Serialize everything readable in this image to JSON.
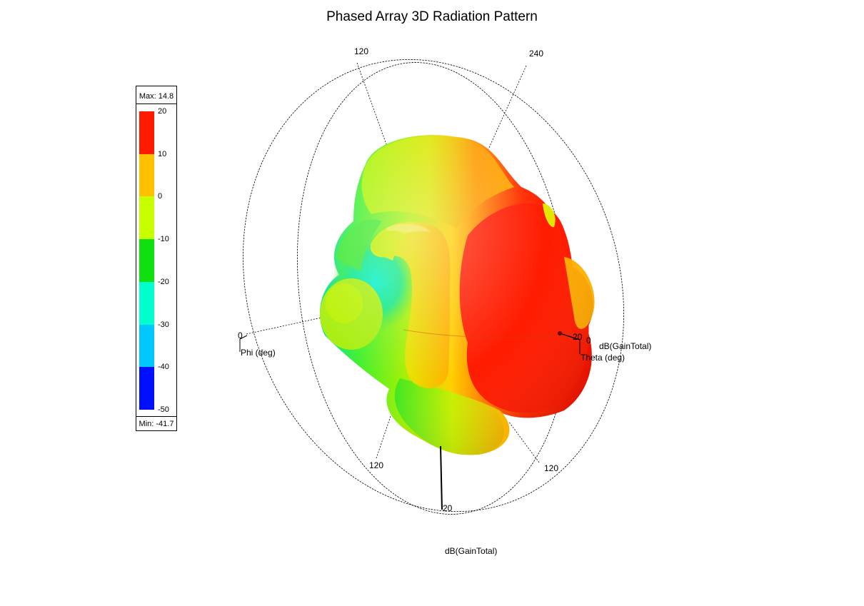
{
  "title": "Phased Array 3D Radiation Pattern",
  "legend": {
    "max_label": "Max: 14.8",
    "min_label": "Min: -41.7",
    "ticks": [
      "20",
      "10",
      "0",
      "-10",
      "-20",
      "-30",
      "-40",
      "-50"
    ],
    "colors": [
      "#ff1a00",
      "#ffc000",
      "#c8ff00",
      "#10e010",
      "#00ffcc",
      "#00c8ff",
      "#0010ff"
    ]
  },
  "axes": {
    "phi_title": "Phi (deg)",
    "theta_title": "Theta (deg)",
    "gain_title": "dB(GainTotal)",
    "gain_title_bottom": "dB(GainTotal)",
    "phi_0": "0",
    "theta_0": "0",
    "label_120_top": "120",
    "label_240_top": "240",
    "label_120_bl": "120",
    "label_120_br": "120",
    "label_20_right": "20",
    "label_20_bottom": "20"
  },
  "chart_data": {
    "type": "3d-radiation-pattern",
    "title": "Phased Array 3D Radiation Pattern",
    "quantity": "dB(GainTotal)",
    "max": 14.8,
    "min": -41.7,
    "colorbar_ticks": [
      20,
      10,
      0,
      -10,
      -20,
      -30,
      -40,
      -50
    ],
    "axes": [
      "Phi (deg)",
      "Theta (deg)",
      "dB(GainTotal)"
    ]
  }
}
